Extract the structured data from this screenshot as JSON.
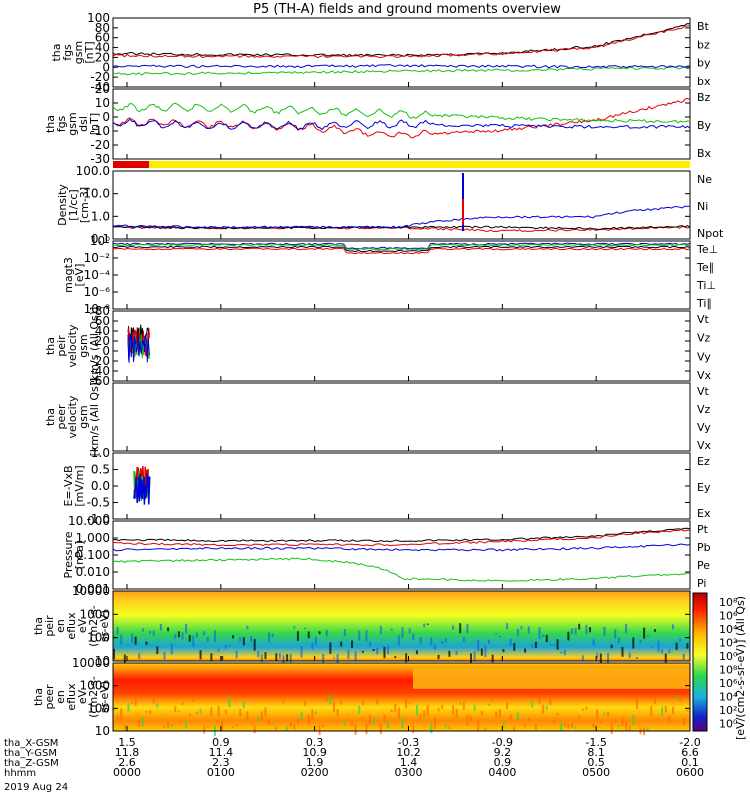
{
  "title": "P5 (TH-A) fields and ground moments overview",
  "colors": {
    "black": "#000000",
    "red": "#e00000",
    "green": "#16c016",
    "blue": "#0000d8",
    "yellow": "#ffee00"
  },
  "panels": [
    {
      "id": "fgs-gsm",
      "ylabel": [
        "tha",
        "fgs",
        "gsm",
        "[nT]"
      ],
      "yticks": [
        "100",
        "80",
        "60",
        "40",
        "20",
        "0",
        "-20",
        "-40"
      ],
      "legend": [
        {
          "t": "Bt",
          "c": "black"
        },
        {
          "t": "bz",
          "c": "red"
        },
        {
          "t": "by",
          "c": "green"
        },
        {
          "t": "bx",
          "c": "blue"
        }
      ]
    },
    {
      "id": "fgs-dsl",
      "ylabel": [
        "tha",
        "fgs",
        "gsm",
        "dsl",
        "[nT]"
      ],
      "yticks": [
        "20",
        "10",
        "0",
        "-10",
        "-20",
        "-30"
      ],
      "legend": [
        {
          "t": "Bz",
          "c": "red"
        },
        {
          "t": "By",
          "c": "green"
        },
        {
          "t": "Bx",
          "c": "blue"
        }
      ]
    },
    {
      "id": "density",
      "ylabel": [
        "Density",
        "[1/cc]",
        "[cm-3]"
      ],
      "yticks": [
        "100.0",
        "10.0",
        "1.0",
        "0.1"
      ],
      "legend": [
        {
          "t": "Ne",
          "c": "red"
        },
        {
          "t": "Ni",
          "c": "black"
        },
        {
          "t": "Npot",
          "c": "blue"
        }
      ]
    },
    {
      "id": "temp",
      "ylabel": [
        "magt3",
        "[eV]"
      ],
      "yticks": [
        "10⁰",
        "10⁻²",
        "10⁻⁴",
        "10⁻⁶",
        "10⁻⁸"
      ],
      "legend": [
        {
          "t": "Te⊥",
          "c": "red"
        },
        {
          "t": "Te∥",
          "c": "black"
        },
        {
          "t": "Ti⊥",
          "c": "blue"
        },
        {
          "t": "Ti∥",
          "c": "green"
        }
      ]
    },
    {
      "id": "peir-vel",
      "ylabel": [
        "tha",
        "peir",
        "velocity",
        "gsm",
        "[km/s (All Qs)]"
      ],
      "yticks": [
        "80",
        "60",
        "40",
        "20",
        "0",
        "-20",
        "-40",
        "-60"
      ],
      "legend": [
        {
          "t": "Vt",
          "c": "black"
        },
        {
          "t": "Vz",
          "c": "red"
        },
        {
          "t": "Vy",
          "c": "green"
        },
        {
          "t": "Vx",
          "c": "blue"
        }
      ]
    },
    {
      "id": "peer-vel",
      "ylabel": [
        "tha",
        "peer",
        "velocity",
        "gsm",
        "[km/s (All Qs)]"
      ],
      "yticks": [],
      "legend": [
        {
          "t": "Vt",
          "c": "black"
        },
        {
          "t": "Vz",
          "c": "red"
        },
        {
          "t": "Vy",
          "c": "green"
        },
        {
          "t": "Vx",
          "c": "blue"
        }
      ]
    },
    {
      "id": "efield",
      "ylabel": [
        "E=-VxB",
        "[mV/m]"
      ],
      "yticks": [
        "1.0",
        "0.5",
        "0.0",
        "-0.5",
        "-1.0"
      ],
      "legend": [
        {
          "t": "Ez",
          "c": "red"
        },
        {
          "t": "Ey",
          "c": "green"
        },
        {
          "t": "Ex",
          "c": "blue"
        }
      ]
    },
    {
      "id": "pressure",
      "ylabel": [
        "Pressure",
        "[nPa]"
      ],
      "yticks": [
        "10.000",
        "1.000",
        "0.100",
        "0.010",
        "0.001"
      ],
      "legend": [
        {
          "t": "Pt",
          "c": "black"
        },
        {
          "t": "Pb",
          "c": "red"
        },
        {
          "t": "Pe",
          "c": "green"
        },
        {
          "t": "Pi",
          "c": "blue"
        }
      ]
    },
    {
      "id": "peir-en",
      "ylabel": [
        "tha",
        "peir",
        "en",
        "eflux",
        "eV",
        "(cm2-s-",
        "sr-eV)"
      ],
      "yticks": [
        "10000",
        "1000",
        "100",
        "10"
      ],
      "legend": []
    },
    {
      "id": "peer-en",
      "ylabel": [
        "tha",
        "peer",
        "en",
        "eflux",
        "eV",
        "(cm2-s-",
        "sr-eV)"
      ],
      "yticks": [
        "10000",
        "1000",
        "100",
        "10"
      ],
      "legend": []
    }
  ],
  "colorbar": {
    "ticks": [
      "10⁸",
      "10⁶",
      "10⁴",
      "10²",
      "10⁰",
      "10⁸",
      "10⁶",
      "10⁴",
      "10²",
      "10⁰"
    ],
    "label": "[eV/(cm2-s-sr-eV)] (All Qs)"
  },
  "xaxis": {
    "rows": [
      {
        "label": "tha_X-GSM",
        "values": [
          "1.5",
          "0.9",
          "0.3",
          "-0.3",
          "-0.9",
          "-1.5",
          "-2.0"
        ]
      },
      {
        "label": "tha_Y-GSM",
        "values": [
          "11.8",
          "11.4",
          "10.9",
          "10.2",
          "9.2",
          "8.1",
          "6.6"
        ]
      },
      {
        "label": "tha_Z-GSM",
        "values": [
          "2.6",
          "2.3",
          "1.9",
          "1.4",
          "0.9",
          "0.5",
          "0.1"
        ]
      },
      {
        "label": "hhmm",
        "values": [
          "0000",
          "0100",
          "0200",
          "0300",
          "0400",
          "0500",
          "0600"
        ]
      }
    ],
    "date": "2019 Aug 24"
  },
  "chart_data": {
    "type": "line",
    "title": "P5 (TH-A) fields and ground moments overview",
    "x": [
      "0000",
      "0100",
      "0200",
      "0300",
      "0400",
      "0500",
      "0600"
    ],
    "xlabel": "hhmm",
    "date": "2019 Aug 24",
    "series": [
      {
        "name": "Bt",
        "panel": "fgs-gsm",
        "values": [
          28,
          26,
          25,
          24,
          28,
          42,
          88
        ]
      },
      {
        "name": "bz",
        "panel": "fgs-gsm",
        "values": [
          24,
          22,
          22,
          22,
          27,
          40,
          85
        ]
      },
      {
        "name": "by",
        "panel": "fgs-gsm",
        "values": [
          -14,
          -12,
          -10,
          -8,
          -6,
          -3,
          -1
        ]
      },
      {
        "name": "bx",
        "panel": "fgs-gsm",
        "values": [
          3,
          2,
          2,
          3,
          2,
          1,
          1
        ]
      },
      {
        "name": "Bz",
        "panel": "fgs-dsl",
        "values": [
          -1,
          -3,
          -5,
          -12,
          -8,
          0,
          17
        ]
      },
      {
        "name": "By",
        "panel": "fgs-dsl",
        "values": [
          10,
          10,
          8,
          5,
          2,
          0,
          -1
        ]
      },
      {
        "name": "Bx",
        "panel": "fgs-dsl",
        "values": [
          -2,
          -4,
          -4,
          -3,
          -4,
          -5,
          -5
        ]
      },
      {
        "name": "Ne",
        "panel": "density",
        "values": [
          0.5,
          0.45,
          0.45,
          0.45,
          0.3,
          0.35,
          0.5
        ]
      },
      {
        "name": "Ni",
        "panel": "density",
        "values": [
          0.5,
          0.45,
          0.45,
          0.5,
          0.5,
          0.4,
          0.55
        ]
      },
      {
        "name": "Npot",
        "panel": "density",
        "values": [
          0.6,
          0.5,
          0.5,
          0.5,
          2.0,
          2.0,
          8.0
        ]
      },
      {
        "name": "Pt",
        "panel": "pressure",
        "values": [
          0.8,
          0.7,
          0.7,
          0.7,
          0.8,
          1.2,
          3.5
        ]
      },
      {
        "name": "Pb",
        "panel": "pressure",
        "values": [
          0.5,
          0.4,
          0.4,
          0.4,
          0.6,
          1.0,
          3.0
        ]
      },
      {
        "name": "Pe",
        "panel": "pressure",
        "values": [
          0.04,
          0.05,
          0.06,
          0.004,
          0.003,
          0.004,
          0.008
        ]
      },
      {
        "name": "Pi",
        "panel": "pressure",
        "values": [
          0.2,
          0.25,
          0.25,
          0.2,
          0.2,
          0.25,
          0.4
        ]
      }
    ]
  }
}
